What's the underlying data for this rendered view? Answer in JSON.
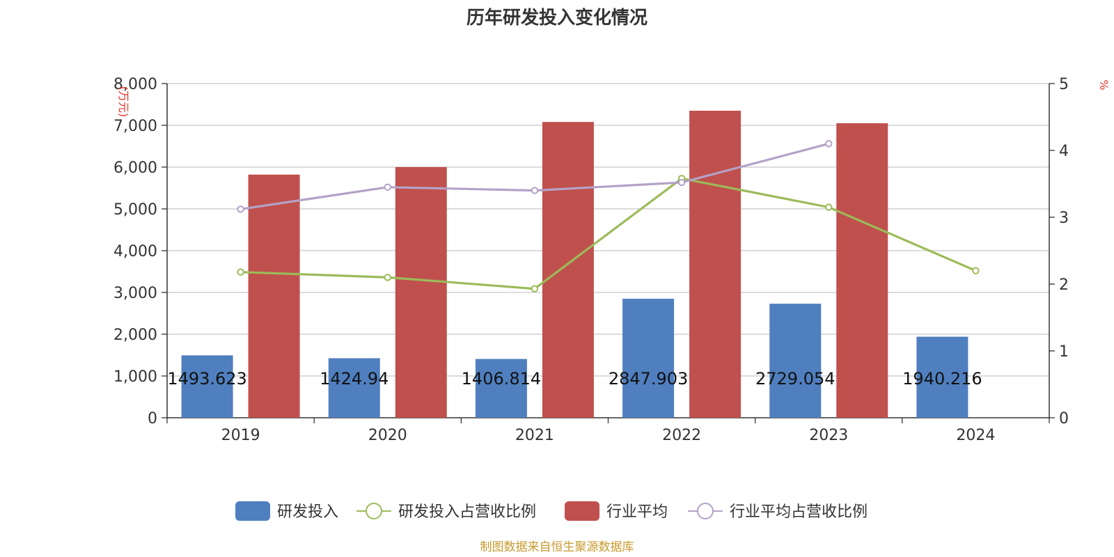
{
  "chart_data": {
    "type": "bar",
    "title": "历年研发投入变化情况",
    "categories": [
      "2019",
      "2020",
      "2021",
      "2022",
      "2023",
      "2024"
    ],
    "y_left": {
      "unit": "万元",
      "min": 0,
      "max": 8000,
      "ticks": [
        "0",
        "1,000",
        "2,000",
        "3,000",
        "4,000",
        "5,000",
        "6,000",
        "7,000",
        "8,000"
      ]
    },
    "y_right": {
      "unit": "%",
      "min": 0,
      "max": 5,
      "ticks": [
        "0",
        "1",
        "2",
        "3",
        "4",
        "5"
      ]
    },
    "grid": true,
    "legend_position": "bottom",
    "series": [
      {
        "name": "研发投入",
        "type": "bar",
        "axis": "left",
        "color": "#4f7fbf",
        "values": [
          1493.623,
          1424.94,
          1406.814,
          2847.903,
          2729.054,
          1940.216
        ],
        "labels": [
          "1493.623",
          "1424.94",
          "1406.814",
          "2847.903",
          "2729.054",
          "1940.216"
        ]
      },
      {
        "name": "研发投入占营收比例",
        "type": "line",
        "axis": "right",
        "color": "#9bbb59",
        "values": [
          2.18,
          2.1,
          1.93,
          3.58,
          3.15,
          2.2
        ]
      },
      {
        "name": "行业平均",
        "type": "bar",
        "axis": "left",
        "color": "#c0504d",
        "values": [
          5820,
          6000,
          7080,
          7350,
          7050,
          null
        ]
      },
      {
        "name": "行业平均占营收比例",
        "type": "line",
        "axis": "right",
        "color": "#b3a2c7",
        "values": [
          3.12,
          3.45,
          3.4,
          3.52,
          4.1,
          null
        ]
      }
    ],
    "source": "制图数据来自恒生聚源数据库"
  }
}
